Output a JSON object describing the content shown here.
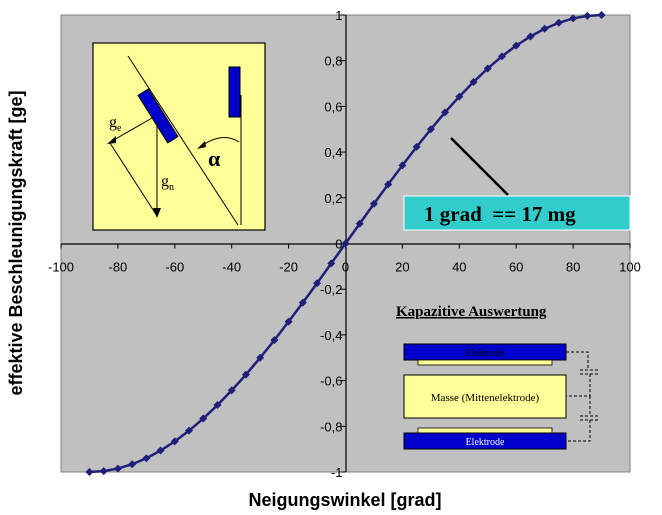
{
  "chart_data": {
    "type": "line",
    "xlabel": "Neigungswinkel [grad]",
    "ylabel": "effektive Beschleunigungskraft [ge]",
    "xlim": [
      -100,
      100
    ],
    "ylim": [
      -1,
      1
    ],
    "x_ticks": [
      "-100",
      "-80",
      "-60",
      "-40",
      "-20",
      "0",
      "20",
      "40",
      "60",
      "80",
      "100"
    ],
    "y_ticks": [
      "1",
      "0,8",
      "0,6",
      "0,4",
      "0,2",
      "0",
      "-0,2",
      "-0,4",
      "-0,6",
      "-0,8",
      "-1"
    ],
    "grid": false,
    "plot_background": "#C0C0C0",
    "series": [
      {
        "color": "#1F1F7A",
        "marker": "diamond",
        "x": [
          -90,
          -85,
          -80,
          -75,
          -70,
          -65,
          -60,
          -55,
          -50,
          -45,
          -40,
          -35,
          -30,
          -25,
          -20,
          -15,
          -10,
          -5,
          0,
          5,
          10,
          15,
          20,
          25,
          30,
          35,
          40,
          45,
          50,
          55,
          60,
          65,
          70,
          75,
          80,
          85,
          90
        ],
        "y": [
          -1,
          -0.996,
          -0.985,
          -0.966,
          -0.94,
          -0.906,
          -0.866,
          -0.819,
          -0.766,
          -0.707,
          -0.643,
          -0.574,
          -0.5,
          -0.423,
          -0.342,
          -0.259,
          -0.174,
          -0.087,
          0,
          0.087,
          0.174,
          0.259,
          0.342,
          0.423,
          0.5,
          0.574,
          0.643,
          0.707,
          0.766,
          0.819,
          0.866,
          0.906,
          0.94,
          0.966,
          0.985,
          0.996,
          1
        ]
      }
    ],
    "annotations": {
      "callout": "1 grad  == 17 mg",
      "callout_color": "#33CCCC",
      "inset_diagram": {
        "label_ge": "g",
        "label_ge_sub": "e",
        "label_gn": "g",
        "label_gn_sub": "n",
        "label_alpha": "α",
        "background": "#FFFF99",
        "sensor_color": "#0000CC"
      },
      "kapazitive": {
        "title": "Kapazitive Auswertung",
        "electrode_top": "Elektrode",
        "mass": "Masse (Mittenelektrode)",
        "electrode_bottom": "Elektrode",
        "electrode_color": "#0000CC",
        "mass_color": "#FFFF99"
      }
    }
  }
}
